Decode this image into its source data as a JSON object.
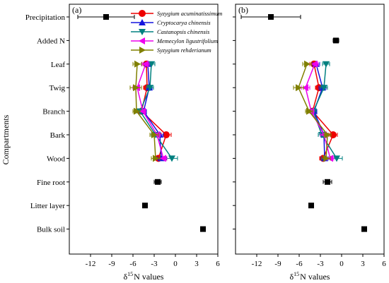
{
  "chart_data": {
    "type": "scatter",
    "ylabel": "Compartments",
    "xlabel_prefix": "δ",
    "xlabel_sup": "15",
    "xlabel_suffix": "N values",
    "xlim": [
      -15,
      6
    ],
    "xticks": [
      -12,
      -9,
      -6,
      -3,
      0,
      3,
      6
    ],
    "categories": [
      "Precipitation",
      "Added N",
      "Leaf",
      "Twig",
      "Branch",
      "Bark",
      "Wood",
      "Fine root",
      "Litter layer",
      "Bulk soil"
    ],
    "panels": [
      {
        "label": "(a)",
        "reference": {
          "name": "",
          "color": "#000000",
          "points": [
            {
              "category": "Precipitation",
              "value": -9.8,
              "err": 4.0
            },
            {
              "category": "Fine root",
              "value": -2.5,
              "err": 0.5
            },
            {
              "category": "Litter layer",
              "value": -4.3,
              "err": 0.3
            },
            {
              "category": "Bulk soil",
              "value": 3.9,
              "err": 0.2
            }
          ]
        },
        "series": [
          {
            "name": "Syzygium acuminatissimum",
            "color": "#ee0000",
            "marker": "circle",
            "values": {
              "Leaf": -4.1,
              "Twig": -4.0,
              "Branch": -4.8,
              "Bark": -1.3,
              "Wood": -2.4
            },
            "errors": {
              "Leaf": 0.6,
              "Twig": 0.5,
              "Branch": 0.4,
              "Bark": 0.7,
              "Wood": 0.5
            }
          },
          {
            "name": "Cryptocarya chinensis",
            "color": "#1414dd",
            "marker": "triangle-up",
            "values": {
              "Leaf": -3.9,
              "Twig": -3.7,
              "Branch": -4.5,
              "Bark": -2.2,
              "Wood": -2.0
            },
            "errors": {
              "Leaf": 0.5,
              "Twig": 0.4,
              "Branch": 0.4,
              "Bark": 0.5,
              "Wood": 0.5
            }
          },
          {
            "name": "Castanopsis chinensis",
            "color": "#008080",
            "marker": "triangle-down",
            "values": {
              "Leaf": -3.4,
              "Twig": -3.6,
              "Branch": -5.0,
              "Bark": -2.8,
              "Wood": -0.5
            },
            "errors": {
              "Leaf": 0.5,
              "Twig": 0.5,
              "Branch": 0.4,
              "Bark": 0.6,
              "Wood": 0.8
            }
          },
          {
            "name": "Memecylon ligustrifolium",
            "color": "#ee00ee",
            "marker": "triangle-left",
            "values": {
              "Leaf": -4.2,
              "Twig": -5.4,
              "Branch": -4.6,
              "Bark": -2.6,
              "Wood": -1.7
            },
            "errors": {
              "Leaf": 0.5,
              "Twig": 0.6,
              "Branch": 0.4,
              "Bark": 0.5,
              "Wood": 0.5
            }
          },
          {
            "name": "Syzygium rehderianum",
            "color": "#808000",
            "marker": "triangle-right",
            "values": {
              "Leaf": -5.4,
              "Twig": -5.6,
              "Branch": -5.5,
              "Bark": -3.0,
              "Wood": -2.8
            },
            "errors": {
              "Leaf": 0.6,
              "Twig": 0.8,
              "Branch": 0.5,
              "Bark": 0.6,
              "Wood": 0.6
            }
          }
        ]
      },
      {
        "label": "(b)",
        "reference": {
          "name": "",
          "color": "#000000",
          "points": [
            {
              "category": "Precipitation",
              "value": -10.0,
              "err": 4.2
            },
            {
              "category": "Added N",
              "value": -0.8,
              "err": 0.4
            },
            {
              "category": "Fine root",
              "value": -2.0,
              "err": 0.6
            },
            {
              "category": "Litter layer",
              "value": -4.3,
              "err": 0.2
            },
            {
              "category": "Bulk soil",
              "value": 3.2,
              "err": 0.2
            }
          ]
        },
        "series": [
          {
            "name": "Syzygium acuminatissimum",
            "color": "#ee0000",
            "marker": "circle",
            "values": {
              "Leaf": -3.9,
              "Twig": -3.2,
              "Branch": -4.1,
              "Bark": -1.2,
              "Wood": -2.6
            },
            "errors": {
              "Leaf": 0.6,
              "Twig": 0.5,
              "Branch": 0.4,
              "Bark": 0.6,
              "Wood": 0.5
            }
          },
          {
            "name": "Cryptocarya chinensis",
            "color": "#1414dd",
            "marker": "triangle-up",
            "values": {
              "Leaf": -3.6,
              "Twig": -2.7,
              "Branch": -3.9,
              "Bark": -2.5,
              "Wood": -2.4
            },
            "errors": {
              "Leaf": 0.5,
              "Twig": 0.5,
              "Branch": 0.4,
              "Bark": 0.5,
              "Wood": 0.5
            }
          },
          {
            "name": "Castanopsis chinensis",
            "color": "#008080",
            "marker": "triangle-down",
            "values": {
              "Leaf": -2.2,
              "Twig": -2.5,
              "Branch": -4.0,
              "Bark": -2.8,
              "Wood": -0.7
            },
            "errors": {
              "Leaf": 0.5,
              "Twig": 0.5,
              "Branch": 0.4,
              "Bark": 0.5,
              "Wood": 0.8
            }
          },
          {
            "name": "Memecylon ligustrifolium",
            "color": "#ee00ee",
            "marker": "triangle-left",
            "values": {
              "Leaf": -3.8,
              "Twig": -5.1,
              "Branch": -4.3,
              "Bark": -2.5,
              "Wood": -1.6
            },
            "errors": {
              "Leaf": 0.5,
              "Twig": 0.6,
              "Branch": 0.4,
              "Bark": 0.5,
              "Wood": 0.5
            }
          },
          {
            "name": "Syzygium rehderianum",
            "color": "#808000",
            "marker": "triangle-right",
            "values": {
              "Leaf": -4.9,
              "Twig": -6.1,
              "Branch": -4.6,
              "Bark": -2.0,
              "Wood": -2.2
            },
            "errors": {
              "Leaf": 0.6,
              "Twig": 0.7,
              "Branch": 0.5,
              "Bark": 0.5,
              "Wood": 0.6
            }
          }
        ]
      }
    ],
    "legend": {
      "placement": "top, panel (a)",
      "entries": [
        "Syzygium acuminatissimum",
        "Cryptocarya chinensis",
        "Castanopsis chinensis",
        "Memecylon ligustrifolium",
        "Syzygium rehderianum"
      ]
    },
    "grid": false
  }
}
